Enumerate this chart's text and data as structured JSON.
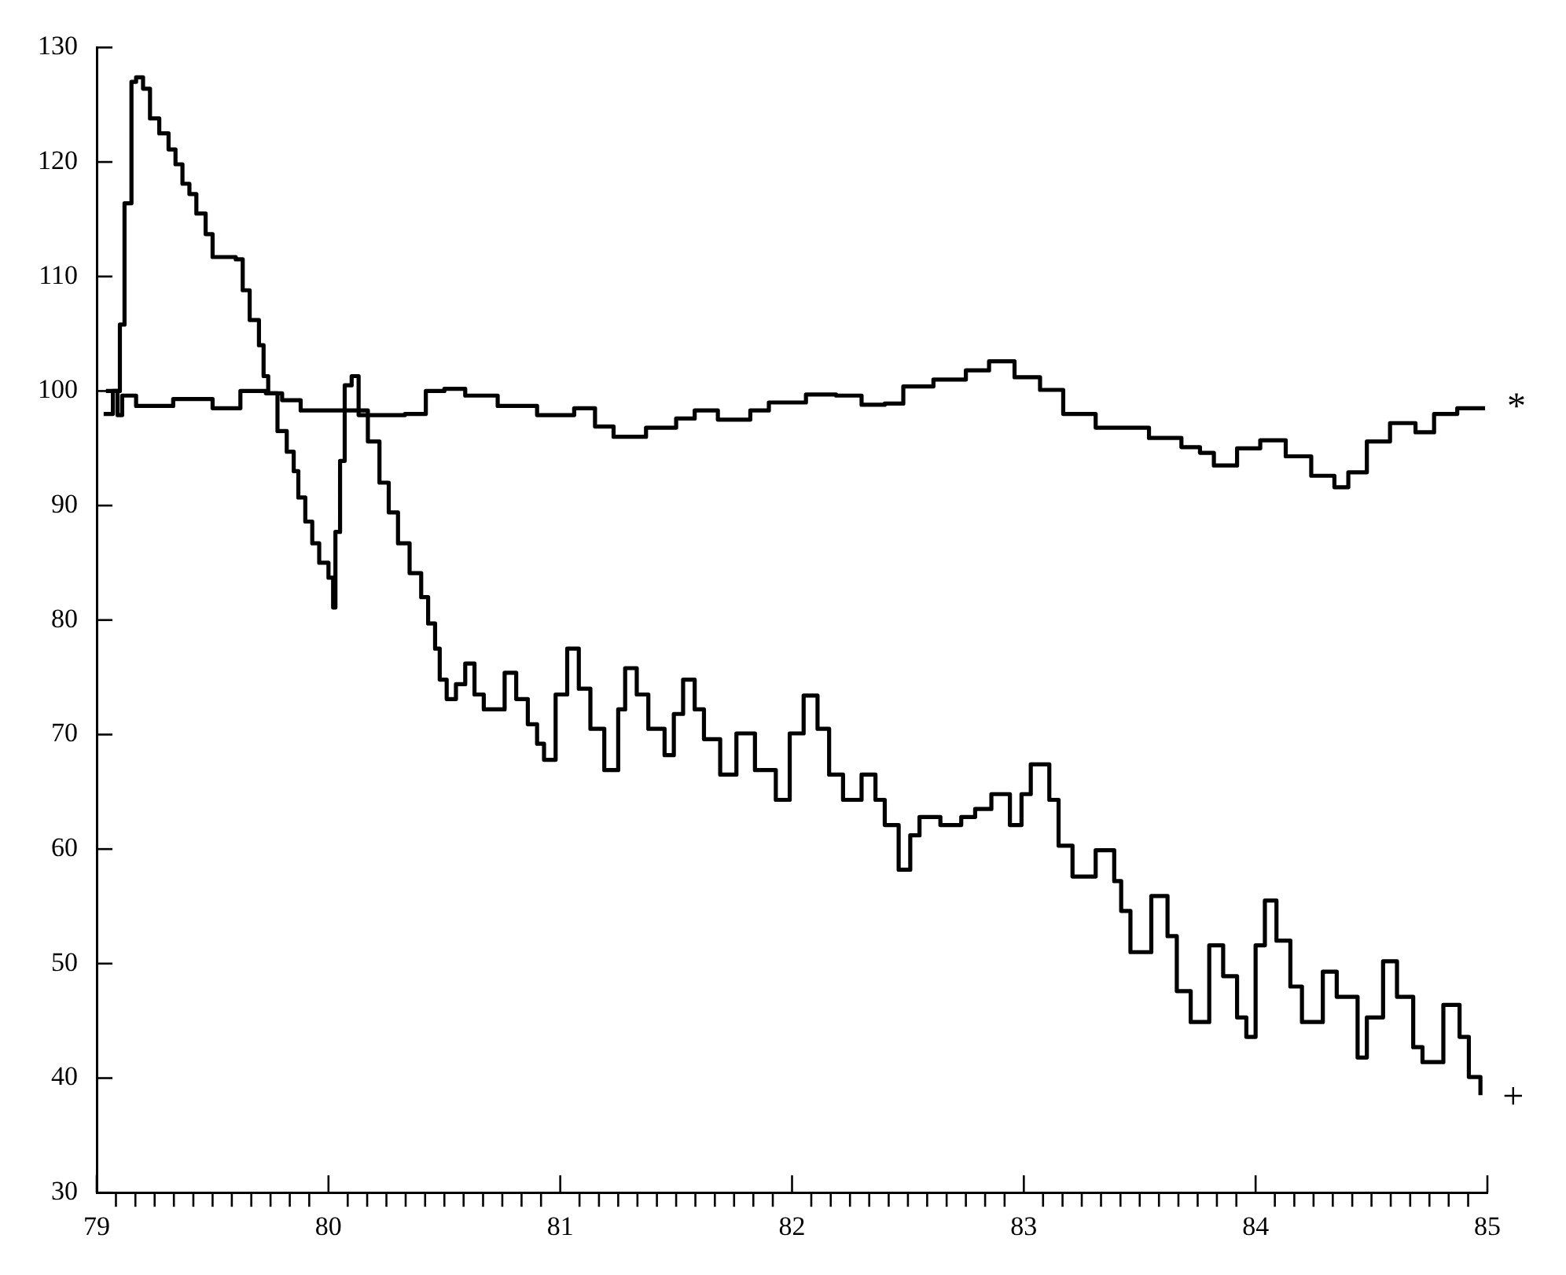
{
  "chart_data": {
    "type": "step",
    "xlim": [
      79,
      85
    ],
    "ylim": [
      30,
      130
    ],
    "xticks": [
      79,
      {
        "value": 79.083,
        "label": null
      },
      {
        "value": 79.167,
        "label": null
      },
      {
        "value": 79.25,
        "label": null
      },
      {
        "value": 79.333,
        "label": null
      },
      {
        "value": 79.417,
        "label": null
      },
      {
        "value": 79.5,
        "label": null
      },
      {
        "value": 79.583,
        "label": null
      },
      {
        "value": 79.667,
        "label": null
      },
      {
        "value": 79.75,
        "label": null
      },
      {
        "value": 79.833,
        "label": null
      },
      {
        "value": 79.917,
        "label": null
      },
      80,
      {
        "value": 80.083,
        "label": null
      },
      {
        "value": 80.167,
        "label": null
      },
      {
        "value": 80.25,
        "label": null
      },
      {
        "value": 80.333,
        "label": null
      },
      {
        "value": 80.417,
        "label": null
      },
      {
        "value": 80.5,
        "label": null
      },
      {
        "value": 80.583,
        "label": null
      },
      {
        "value": 80.667,
        "label": null
      },
      {
        "value": 80.75,
        "label": null
      },
      {
        "value": 80.833,
        "label": null
      },
      {
        "value": 80.917,
        "label": null
      },
      81,
      {
        "value": 81.083,
        "label": null
      },
      {
        "value": 81.167,
        "label": null
      },
      {
        "value": 81.25,
        "label": null
      },
      {
        "value": 81.333,
        "label": null
      },
      {
        "value": 81.417,
        "label": null
      },
      {
        "value": 81.5,
        "label": null
      },
      {
        "value": 81.583,
        "label": null
      },
      {
        "value": 81.667,
        "label": null
      },
      {
        "value": 81.75,
        "label": null
      },
      {
        "value": 81.833,
        "label": null
      },
      {
        "value": 81.917,
        "label": null
      },
      82,
      {
        "value": 82.083,
        "label": null
      },
      {
        "value": 82.167,
        "label": null
      },
      {
        "value": 82.25,
        "label": null
      },
      {
        "value": 82.333,
        "label": null
      },
      {
        "value": 82.417,
        "label": null
      },
      {
        "value": 82.5,
        "label": null
      },
      {
        "value": 82.583,
        "label": null
      },
      {
        "value": 82.667,
        "label": null
      },
      {
        "value": 82.75,
        "label": null
      },
      {
        "value": 82.833,
        "label": null
      },
      {
        "value": 82.917,
        "label": null
      },
      83,
      {
        "value": 83.083,
        "label": null
      },
      {
        "value": 83.167,
        "label": null
      },
      {
        "value": 83.25,
        "label": null
      },
      {
        "value": 83.333,
        "label": null
      },
      {
        "value": 83.417,
        "label": null
      },
      {
        "value": 83.5,
        "label": null
      },
      {
        "value": 83.583,
        "label": null
      },
      {
        "value": 83.667,
        "label": null
      },
      {
        "value": 83.75,
        "label": null
      },
      {
        "value": 83.833,
        "label": null
      },
      {
        "value": 83.917,
        "label": null
      },
      84,
      {
        "value": 84.083,
        "label": null
      },
      {
        "value": 84.167,
        "label": null
      },
      {
        "value": 84.25,
        "label": null
      },
      {
        "value": 84.333,
        "label": null
      },
      {
        "value": 84.417,
        "label": null
      },
      {
        "value": 84.5,
        "label": null
      },
      {
        "value": 84.583,
        "label": null
      },
      {
        "value": 84.667,
        "label": null
      },
      {
        "value": 84.75,
        "label": null
      },
      {
        "value": 84.833,
        "label": null
      },
      {
        "value": 84.917,
        "label": null
      },
      85
    ],
    "yticks": [
      30,
      40,
      50,
      60,
      70,
      80,
      90,
      100,
      110,
      120,
      130
    ],
    "marker": "none",
    "line_style": "solid",
    "series": [
      {
        "name": "*",
        "color": "#000000",
        "x": [
          79.04,
          79.09,
          79.11,
          79.17,
          79.33,
          79.5,
          79.62,
          79.73,
          79.8,
          79.88,
          80.02,
          80.13,
          80.33,
          80.42,
          80.5,
          80.59,
          80.73,
          80.9,
          81.06,
          81.15,
          81.23,
          81.37,
          81.5,
          81.58,
          81.68,
          81.82,
          81.9,
          82.06,
          82.19,
          82.3,
          82.4,
          82.48,
          82.61,
          82.75,
          82.85,
          82.96,
          83.07,
          83.17,
          83.31,
          83.44,
          83.54,
          83.68,
          83.76,
          83.82,
          83.92,
          84.02,
          84.13,
          84.24,
          84.34,
          84.4,
          84.48,
          84.58,
          84.69,
          84.77,
          84.87,
          84.99
        ],
        "values": [
          100,
          97.9,
          99.6,
          98.7,
          99.3,
          98.5,
          100,
          99.8,
          99.2,
          98.3,
          98.3,
          97.9,
          98,
          100,
          100.2,
          99.6,
          98.7,
          97.9,
          98.5,
          96.9,
          96,
          96.8,
          97.6,
          98.3,
          97.5,
          98.3,
          99,
          99.7,
          99.6,
          98.8,
          98.9,
          100.4,
          101,
          101.8,
          102.6,
          101.2,
          100.1,
          98,
          96.8,
          96.8,
          95.9,
          95.1,
          94.6,
          93.5,
          95,
          95.7,
          94.3,
          92.6,
          91.6,
          92.9,
          95.6,
          97.2,
          96.4,
          98,
          98.5,
          98.5
        ]
      },
      {
        "name": "+",
        "color": "#000000",
        "x": [
          79.03,
          79.07,
          79.1,
          79.12,
          79.15,
          79.17,
          79.2,
          79.23,
          79.27,
          79.31,
          79.34,
          79.37,
          79.4,
          79.43,
          79.47,
          79.5,
          79.6,
          79.63,
          79.66,
          79.7,
          79.72,
          79.74,
          79.78,
          79.82,
          79.85,
          79.87,
          79.9,
          79.93,
          79.96,
          80,
          80.02,
          80.03,
          80.05,
          80.07,
          80.1,
          80.13,
          80.17,
          80.22,
          80.26,
          80.3,
          80.35,
          80.4,
          80.43,
          80.46,
          80.48,
          80.51,
          80.55,
          80.59,
          80.63,
          80.67,
          80.76,
          80.81,
          80.86,
          80.9,
          80.93,
          80.98,
          81.03,
          81.08,
          81.13,
          81.19,
          81.25,
          81.28,
          81.33,
          81.38,
          81.45,
          81.49,
          81.53,
          81.58,
          81.62,
          81.69,
          81.76,
          81.84,
          81.93,
          81.99,
          82.05,
          82.11,
          82.16,
          82.22,
          82.3,
          82.36,
          82.4,
          82.46,
          82.51,
          82.55,
          82.64,
          82.73,
          82.79,
          82.86,
          82.94,
          82.99,
          83.03,
          83.11,
          83.15,
          83.21,
          83.31,
          83.39,
          83.42,
          83.46,
          83.55,
          83.62,
          83.66,
          83.72,
          83.8,
          83.86,
          83.92,
          83.96,
          84,
          84.04,
          84.09,
          84.15,
          84.2,
          84.29,
          84.35,
          84.44,
          84.48,
          84.55,
          84.61,
          84.68,
          84.72,
          84.81,
          84.88,
          84.92,
          84.97
        ],
        "values": [
          98,
          100,
          105.8,
          116.4,
          127,
          127.4,
          126.4,
          123.8,
          122.5,
          121.1,
          119.8,
          118.1,
          117.2,
          115.5,
          113.7,
          111.7,
          111.5,
          108.8,
          106.2,
          104,
          101.3,
          99.8,
          96.5,
          94.7,
          93,
          90.7,
          88.6,
          86.7,
          85,
          83.7,
          81.1,
          87.7,
          93.9,
          100.5,
          101.3,
          98.3,
          95.6,
          92,
          89.4,
          86.7,
          84.1,
          82,
          79.7,
          77.5,
          74.8,
          73.1,
          74.4,
          76.2,
          73.5,
          72.2,
          75.4,
          73.1,
          70.9,
          69.2,
          67.8,
          73.5,
          77.5,
          74,
          70.5,
          66.9,
          72.2,
          75.8,
          73.5,
          70.5,
          68.2,
          71.8,
          74.8,
          72.2,
          69.6,
          66.5,
          70.1,
          66.9,
          64.3,
          70.1,
          73.4,
          70.5,
          66.5,
          64.3,
          66.5,
          64.3,
          62.1,
          58.2,
          61.2,
          62.8,
          62.1,
          62.8,
          63.5,
          64.8,
          62.1,
          64.8,
          67.4,
          64.3,
          60.3,
          57.6,
          59.9,
          57.2,
          54.6,
          51,
          55.9,
          52.4,
          47.6,
          44.9,
          51.6,
          48.9,
          45.3,
          43.6,
          51.6,
          55.5,
          52,
          48,
          44.9,
          49.3,
          47.1,
          41.8,
          45.3,
          50.2,
          47.1,
          42.7,
          41.4,
          46.4,
          43.6,
          40.1,
          38.5
        ]
      }
    ]
  }
}
